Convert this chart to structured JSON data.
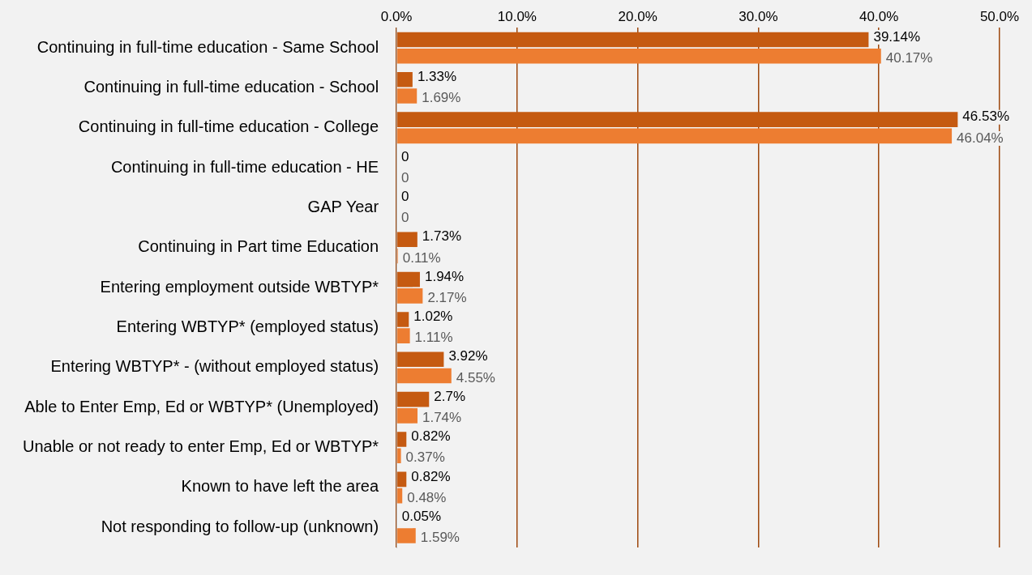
{
  "chart_data": {
    "type": "bar",
    "orientation": "horizontal",
    "grid": "x",
    "categories": [
      "Continuing in full-time education - Same School",
      "Continuing in full-time education - School",
      "Continuing in full-time education - College",
      "Continuing in full-time education - HE",
      "GAP Year",
      "Continuing in Part time Education",
      "Entering employment outside WBTYP*",
      "Entering WBTYP* (employed status)",
      "Entering WBTYP* - (without employed status)",
      "Able to Enter Emp, Ed or WBTYP* (Unemployed)",
      "Unable or not ready to enter Emp, Ed or WBTYP*",
      "Known to have left the area",
      "Not responding to follow-up (unknown)"
    ],
    "series": [
      {
        "color": "#c55a11",
        "values": [
          39.14,
          1.33,
          46.53,
          0,
          0,
          1.73,
          1.94,
          1.02,
          3.92,
          2.7,
          0.82,
          0.82,
          0.05
        ],
        "value_labels": [
          "39.14%",
          "1.33%",
          "46.53%",
          "0",
          "0",
          "1.73%",
          "1.94%",
          "1.02%",
          "3.92%",
          "2.7%",
          "0.82%",
          "0.82%",
          "0.05%"
        ]
      },
      {
        "color": "#ed7d31",
        "values": [
          40.17,
          1.69,
          46.04,
          0,
          0,
          0.11,
          2.17,
          1.11,
          4.55,
          1.74,
          0.37,
          0.48,
          1.59
        ],
        "value_labels": [
          "40.17%",
          "1.69%",
          "46.04%",
          "0",
          "0",
          "0.11%",
          "2.17%",
          "1.11%",
          "4.55%",
          "1.74%",
          "0.37%",
          "0.48%",
          "1.59%"
        ]
      }
    ],
    "xlim": [
      0,
      50
    ],
    "xticks": [
      {
        "value": 0,
        "label": "0.0%"
      },
      {
        "value": 10,
        "label": "10.0%"
      },
      {
        "value": 20,
        "label": "20.0%"
      },
      {
        "value": 30,
        "label": "30.0%"
      },
      {
        "value": 40,
        "label": "40.0%"
      },
      {
        "value": 50,
        "label": "50.0%"
      }
    ]
  }
}
